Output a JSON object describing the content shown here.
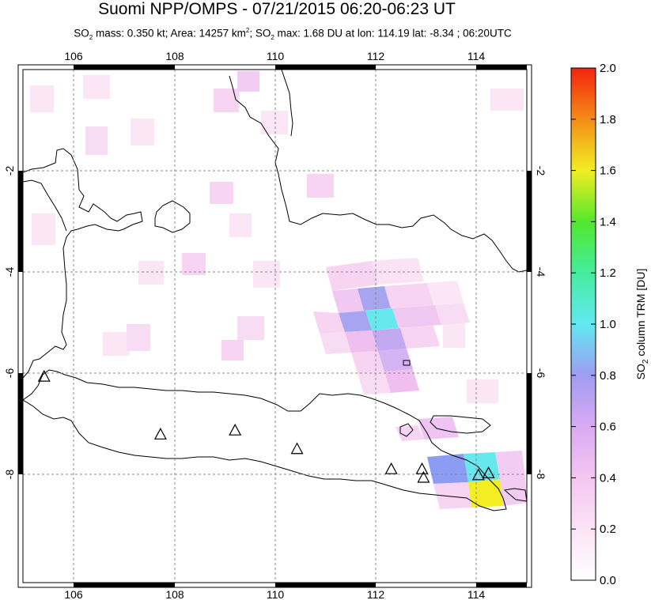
{
  "header": {
    "title": "Suomi NPP/OMPS - 07/21/2015 06:20-06:23 UT",
    "subtitle_parts": {
      "so2_prefix": "SO",
      "sub2": "2",
      "mass_area": " mass: 0.350 kt; Area: 14257 km",
      "sup2": "2",
      "so2_prefix_b": "; SO",
      "max_info": " max: 1.68 DU at lon: 114.19 lat: -8.34 ; 06:20UTC"
    }
  },
  "map": {
    "lon_range": [
      105,
      115
    ],
    "lat_range": [
      -10.2,
      0.0
    ],
    "lon_ticks": [
      "106",
      "108",
      "110",
      "112",
      "114"
    ],
    "lat_ticks": [
      "-2",
      "-4",
      "-6",
      "-8"
    ],
    "volcano_markers": [
      {
        "lon": 105.42,
        "lat": -6.1
      },
      {
        "lon": 107.73,
        "lat": -7.25
      },
      {
        "lon": 109.21,
        "lat": -7.17
      },
      {
        "lon": 110.44,
        "lat": -7.54
      },
      {
        "lon": 112.31,
        "lat": -7.94
      },
      {
        "lon": 112.92,
        "lat": -7.94
      },
      {
        "lon": 112.95,
        "lat": -8.11
      },
      {
        "lon": 114.04,
        "lat": -8.06
      },
      {
        "lon": 114.24,
        "lat": -8.02
      }
    ]
  },
  "colorbar": {
    "label_prefix": "SO",
    "label_sub": "2",
    "label_suffix": " column TRM [DU]",
    "ticks": [
      "0.0",
      "0.2",
      "0.4",
      "0.6",
      "0.8",
      "1.0",
      "1.2",
      "1.4",
      "1.6",
      "1.8",
      "2.0"
    ],
    "range": [
      0,
      2.0
    ]
  },
  "colors": {
    "faint_pink": "#fbe6f6",
    "light_pink": "#f6d2f0",
    "pink": "#efbff0",
    "lavender": "#c9a8f2",
    "blue_violet": "#a7a4f0",
    "periwinkle": "#8c9cf2",
    "cyan": "#66e8ee",
    "yellow": "#f2ee22"
  },
  "so2_pixels": [
    {
      "lon": 111.9,
      "lat": -4.6,
      "du": 0.6
    },
    {
      "lon": 111.5,
      "lat": -5.0,
      "du": 0.6
    },
    {
      "lon": 112.1,
      "lat": -5.0,
      "du": 0.9
    },
    {
      "lon": 112.0,
      "lat": -5.5,
      "du": 0.45
    },
    {
      "lon": 114.0,
      "lat": -7.8,
      "du": 0.95
    },
    {
      "lon": 113.4,
      "lat": -7.95,
      "du": 0.6
    },
    {
      "lon": 114.1,
      "lat": -8.3,
      "du": 1.68
    }
  ]
}
